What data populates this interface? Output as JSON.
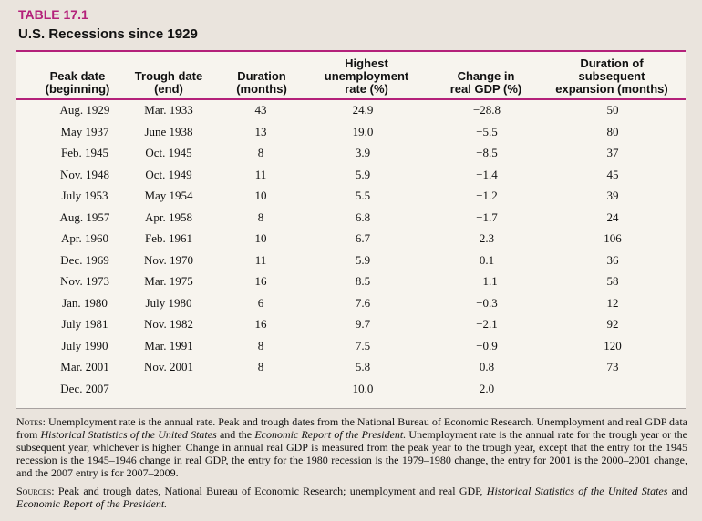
{
  "table": {
    "label": "TABLE 17.1",
    "title": "U.S. Recessions since 1929"
  },
  "columns": [
    "Peak date\n(beginning)",
    "Trough date\n(end)",
    "Duration\n(months)",
    "Highest\nunemployment\nrate (%)",
    "Change in\nreal GDP (%)",
    "Duration of\nsubsequent\nexpansion (months)"
  ],
  "rows": [
    [
      "Aug. 1929",
      "Mar. 1933",
      "43",
      "24.9",
      "−28.8",
      "50"
    ],
    [
      "May 1937",
      "June 1938",
      "13",
      "19.0",
      "−5.5",
      "80"
    ],
    [
      "Feb. 1945",
      "Oct. 1945",
      "8",
      "3.9",
      "−8.5",
      "37"
    ],
    [
      "Nov. 1948",
      "Oct. 1949",
      "11",
      "5.9",
      "−1.4",
      "45"
    ],
    [
      "July 1953",
      "May 1954",
      "10",
      "5.5",
      "−1.2",
      "39"
    ],
    [
      "Aug. 1957",
      "Apr. 1958",
      "8",
      "6.8",
      "−1.7",
      "24"
    ],
    [
      "Apr. 1960",
      "Feb. 1961",
      "10",
      "6.7",
      "2.3",
      "106"
    ],
    [
      "Dec. 1969",
      "Nov. 1970",
      "11",
      "5.9",
      "0.1",
      "36"
    ],
    [
      "Nov. 1973",
      "Mar. 1975",
      "16",
      "8.5",
      "−1.1",
      "58"
    ],
    [
      "Jan. 1980",
      "July 1980",
      "6",
      "7.6",
      "−0.3",
      "12"
    ],
    [
      "July 1981",
      "Nov. 1982",
      "16",
      "9.7",
      "−2.1",
      "92"
    ],
    [
      "July 1990",
      "Mar. 1991",
      "8",
      "7.5",
      "−0.9",
      "120"
    ],
    [
      "Mar. 2001",
      "Nov. 2001",
      "8",
      "5.8",
      "0.8",
      "73"
    ],
    [
      "Dec. 2007",
      "",
      "",
      "10.0",
      "2.0",
      ""
    ]
  ],
  "notes": {
    "notes_label": "Notes:",
    "notes_part1": " Unemployment rate is the annual rate. Peak and trough dates from the National Bureau of Economic Research. Unemployment and real GDP data from ",
    "notes_src1": "Historical Statistics of the United States",
    "notes_part2": " and the ",
    "notes_src2": "Economic Report of the President.",
    "notes_part3": " Unemployment rate is the annual rate for the trough year or the subsequent year, whichever is higher. Change in annual real GDP is measured from the peak year to the trough year, except that the entry for the 1945 recession is the 1945–1946 change in real GDP, the entry for the 1980 recession is the 1979–1980 change, the entry for 2001 is the 2000–2001 change, and the 2007 entry is for 2007–2009.",
    "sources_label": "Sources:",
    "sources_part1": " Peak and trough dates, National Bureau of Economic Research; unemployment and real GDP, ",
    "sources_src1": "Historical Statistics of the United States",
    "sources_part2": " and ",
    "sources_src2": "Economic Report of the President."
  },
  "colors": {
    "accent": "#b4217a",
    "panel": "#f7f4ee",
    "background": "#eae4dd"
  }
}
